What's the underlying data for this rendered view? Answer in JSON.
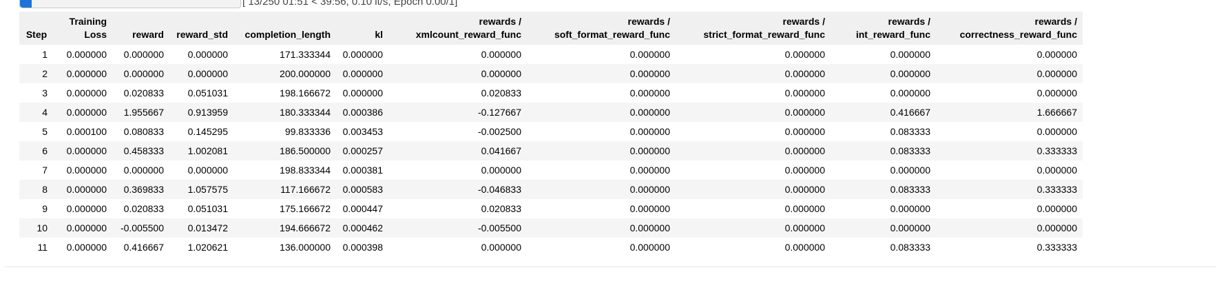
{
  "progress": {
    "fraction": 0.052,
    "text": "[ 13/250 01:51 < 39:56, 0.10 it/s, Epoch 0.00/1]"
  },
  "table": {
    "headers": [
      [
        "Step"
      ],
      [
        "Training",
        "Loss"
      ],
      [
        "reward"
      ],
      [
        "reward_std"
      ],
      [
        "completion_length"
      ],
      [
        "kl"
      ],
      [
        "rewards /",
        "xmlcount_reward_func"
      ],
      [
        "rewards /",
        "soft_format_reward_func"
      ],
      [
        "rewards /",
        "strict_format_reward_func"
      ],
      [
        "rewards /",
        "int_reward_func"
      ],
      [
        "rewards /",
        "correctness_reward_func"
      ]
    ],
    "rows": [
      [
        "1",
        "0.000000",
        "0.000000",
        "0.000000",
        "171.333344",
        "0.000000",
        "0.000000",
        "0.000000",
        "0.000000",
        "0.000000",
        "0.000000"
      ],
      [
        "2",
        "0.000000",
        "0.000000",
        "0.000000",
        "200.000000",
        "0.000000",
        "0.000000",
        "0.000000",
        "0.000000",
        "0.000000",
        "0.000000"
      ],
      [
        "3",
        "0.000000",
        "0.020833",
        "0.051031",
        "198.166672",
        "0.000000",
        "0.020833",
        "0.000000",
        "0.000000",
        "0.000000",
        "0.000000"
      ],
      [
        "4",
        "0.000000",
        "1.955667",
        "0.913959",
        "180.333344",
        "0.000386",
        "-0.127667",
        "0.000000",
        "0.000000",
        "0.416667",
        "1.666667"
      ],
      [
        "5",
        "0.000100",
        "0.080833",
        "0.145295",
        "99.833336",
        "0.003453",
        "-0.002500",
        "0.000000",
        "0.000000",
        "0.083333",
        "0.000000"
      ],
      [
        "6",
        "0.000000",
        "0.458333",
        "1.002081",
        "186.500000",
        "0.000257",
        "0.041667",
        "0.000000",
        "0.000000",
        "0.083333",
        "0.333333"
      ],
      [
        "7",
        "0.000000",
        "0.000000",
        "0.000000",
        "198.833344",
        "0.000381",
        "0.000000",
        "0.000000",
        "0.000000",
        "0.000000",
        "0.000000"
      ],
      [
        "8",
        "0.000000",
        "0.369833",
        "1.057575",
        "117.166672",
        "0.000583",
        "-0.046833",
        "0.000000",
        "0.000000",
        "0.083333",
        "0.333333"
      ],
      [
        "9",
        "0.000000",
        "0.020833",
        "0.051031",
        "175.166672",
        "0.000447",
        "0.020833",
        "0.000000",
        "0.000000",
        "0.000000",
        "0.000000"
      ],
      [
        "10",
        "0.000000",
        "-0.005500",
        "0.013472",
        "194.666672",
        "0.000462",
        "-0.005500",
        "0.000000",
        "0.000000",
        "0.000000",
        "0.000000"
      ],
      [
        "11",
        "0.000000",
        "0.416667",
        "1.020621",
        "136.000000",
        "0.000398",
        "0.000000",
        "0.000000",
        "0.000000",
        "0.083333",
        "0.333333"
      ]
    ]
  }
}
